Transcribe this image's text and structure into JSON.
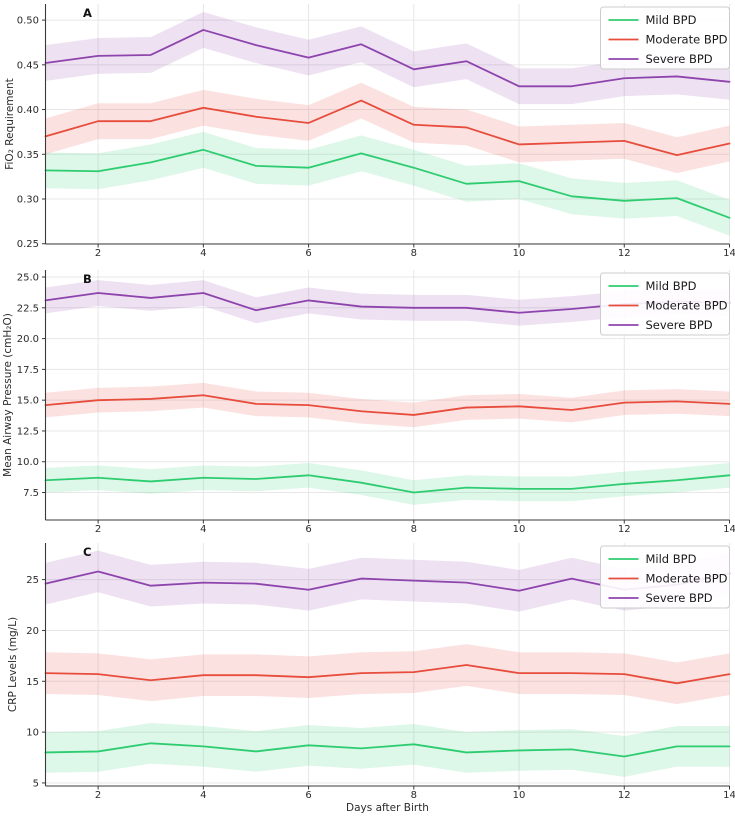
{
  "figure": {
    "background": "#ffffff",
    "x_axis_label": "Days after Birth",
    "legend_labels": [
      "Mild BPD",
      "Moderate BPD",
      "Severe BPD"
    ],
    "colors": {
      "mild": "#2ecc71",
      "moderate": "#e74c3c",
      "severe": "#8e44ad"
    }
  },
  "chart_data": [
    {
      "type": "line",
      "panel_label": "A",
      "ylabel": "FiO₂ Requirement",
      "xlabel": "",
      "x": [
        1,
        2,
        3,
        4,
        5,
        6,
        7,
        8,
        9,
        10,
        11,
        12,
        13,
        14
      ],
      "xlim": [
        1,
        14
      ],
      "ylim": [
        0.2497,
        0.518
      ],
      "xticks": {
        "values": [
          2,
          4,
          6,
          8,
          10,
          12,
          14
        ],
        "labels": [
          "2",
          "4",
          "6",
          "8",
          "10",
          "12",
          "14"
        ]
      },
      "yticks": {
        "values": [
          0.25,
          0.3,
          0.35,
          0.4,
          0.45,
          0.5
        ],
        "labels": [
          "0.25",
          "0.30",
          "0.35",
          "0.40",
          "0.45",
          "0.50"
        ]
      },
      "grid": true,
      "legend_position": "upper right",
      "series": [
        {
          "name": "Mild BPD",
          "color": "#2ecc71",
          "band_half_width": 0.02,
          "values": [
            0.332,
            0.331,
            0.341,
            0.355,
            0.337,
            0.335,
            0.351,
            0.335,
            0.317,
            0.32,
            0.303,
            0.298,
            0.301,
            0.279
          ]
        },
        {
          "name": "Moderate BPD",
          "color": "#e74c3c",
          "band_half_width": 0.02,
          "values": [
            0.37,
            0.387,
            0.387,
            0.402,
            0.392,
            0.385,
            0.41,
            0.383,
            0.38,
            0.361,
            0.363,
            0.365,
            0.349,
            0.362
          ]
        },
        {
          "name": "Severe BPD",
          "color": "#8e44ad",
          "band_half_width": 0.02,
          "values": [
            0.452,
            0.46,
            0.461,
            0.489,
            0.472,
            0.458,
            0.473,
            0.445,
            0.454,
            0.426,
            0.426,
            0.435,
            0.437,
            0.431
          ]
        }
      ]
    },
    {
      "type": "line",
      "panel_label": "B",
      "ylabel": "Mean Airway Pressure (cmH₂O)",
      "xlabel": "",
      "x": [
        1,
        2,
        3,
        4,
        5,
        6,
        7,
        8,
        9,
        10,
        11,
        12,
        13,
        14
      ],
      "xlim": [
        1,
        14
      ],
      "ylim": [
        5.27,
        25.57
      ],
      "xticks": {
        "values": [
          2,
          4,
          6,
          8,
          10,
          12,
          14
        ],
        "labels": [
          "2",
          "4",
          "6",
          "8",
          "10",
          "12",
          "14"
        ]
      },
      "yticks": {
        "values": [
          7.5,
          10.0,
          12.5,
          15.0,
          17.5,
          20.0,
          22.5,
          25.0
        ],
        "labels": [
          "7.5",
          "10.0",
          "12.5",
          "15.0",
          "17.5",
          "20.0",
          "22.5",
          "25.0"
        ]
      },
      "grid": true,
      "legend_position": "upper right",
      "series": [
        {
          "name": "Mild BPD",
          "color": "#2ecc71",
          "band_half_width": 1.0,
          "values": [
            8.5,
            8.7,
            8.4,
            8.7,
            8.6,
            8.9,
            8.3,
            7.5,
            7.9,
            7.8,
            7.8,
            8.2,
            8.5,
            8.9
          ]
        },
        {
          "name": "Moderate BPD",
          "color": "#e74c3c",
          "band_half_width": 1.0,
          "values": [
            14.6,
            15.0,
            15.1,
            15.4,
            14.7,
            14.6,
            14.1,
            13.8,
            14.4,
            14.5,
            14.2,
            14.8,
            14.9,
            14.7
          ]
        },
        {
          "name": "Severe BPD",
          "color": "#8e44ad",
          "band_half_width": 1.05,
          "values": [
            23.1,
            23.7,
            23.3,
            23.7,
            22.3,
            23.1,
            22.6,
            22.5,
            22.5,
            22.1,
            22.4,
            22.8,
            23.0,
            22.9
          ]
        }
      ]
    },
    {
      "type": "line",
      "panel_label": "C",
      "ylabel": "CRP Levels (mg/L)",
      "xlabel": "Days after Birth",
      "x": [
        1,
        2,
        3,
        4,
        5,
        6,
        7,
        8,
        9,
        10,
        11,
        12,
        13,
        14
      ],
      "xlim": [
        1,
        14
      ],
      "ylim": [
        4.7,
        28.6
      ],
      "xticks": {
        "values": [
          2,
          4,
          6,
          8,
          10,
          12,
          14
        ],
        "labels": [
          "2",
          "4",
          "6",
          "8",
          "10",
          "12",
          "14"
        ]
      },
      "yticks": {
        "values": [
          5,
          10,
          15,
          20,
          25
        ],
        "labels": [
          "5",
          "10",
          "15",
          "20",
          "25"
        ]
      },
      "grid": true,
      "legend_position": "upper right",
      "series": [
        {
          "name": "Mild BPD",
          "color": "#2ecc71",
          "band_half_width": 2.0,
          "values": [
            8.0,
            8.1,
            8.9,
            8.6,
            8.1,
            8.7,
            8.4,
            8.8,
            8.0,
            8.2,
            8.3,
            7.6,
            8.6,
            8.6
          ]
        },
        {
          "name": "Moderate BPD",
          "color": "#e74c3c",
          "band_half_width": 2.05,
          "values": [
            15.8,
            15.7,
            15.1,
            15.6,
            15.6,
            15.4,
            15.8,
            15.9,
            16.6,
            15.8,
            15.8,
            15.7,
            14.8,
            15.7
          ]
        },
        {
          "name": "Severe BPD",
          "color": "#8e44ad",
          "band_half_width": 2.05,
          "values": [
            24.6,
            25.8,
            24.4,
            24.7,
            24.6,
            24.0,
            25.1,
            24.9,
            24.7,
            23.9,
            25.1,
            24.0,
            24.5,
            25.6
          ]
        }
      ]
    }
  ]
}
